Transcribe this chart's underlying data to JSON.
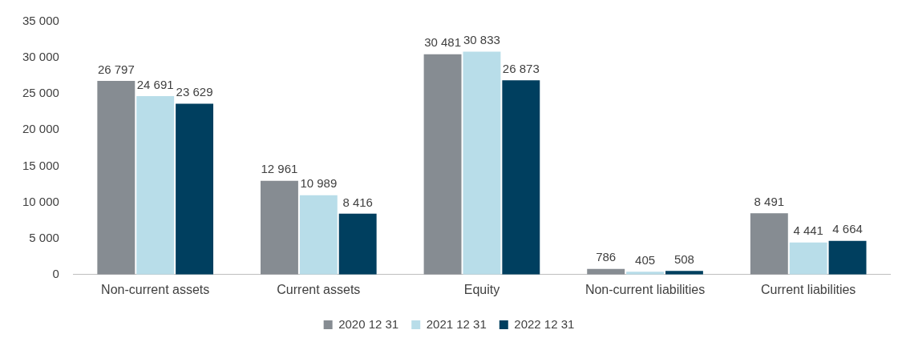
{
  "chart_data": {
    "type": "bar",
    "categories": [
      "Non-current assets",
      "Current assets",
      "Equity",
      "Non-current liabilities",
      "Current liabilities"
    ],
    "series": [
      {
        "name": "2020 12 31",
        "color": "#868c92",
        "values": [
          26797,
          12961,
          30481,
          786,
          8491
        ],
        "value_labels": [
          "26 797",
          "12 961",
          "30 481",
          "786",
          "8 491"
        ]
      },
      {
        "name": "2021 12 31",
        "color": "#b8dde9",
        "values": [
          24691,
          10989,
          30833,
          405,
          4441
        ],
        "value_labels": [
          "24 691",
          "10 989",
          "30 833",
          "405",
          "4 441"
        ]
      },
      {
        "name": "2022 12 31",
        "color": "#003f5f",
        "values": [
          23629,
          8416,
          26873,
          508,
          4664
        ],
        "value_labels": [
          "23 629",
          "8 416",
          "26 873",
          "508",
          "4 664"
        ]
      }
    ],
    "ylim": [
      0,
      35000
    ],
    "yticks": [
      0,
      {
        "value": 5000,
        "label": "5 000"
      },
      {
        "value": 10000,
        "label": "10 000"
      },
      {
        "value": 15000,
        "label": "15 000"
      },
      {
        "value": 20000,
        "label": "20 000"
      },
      {
        "value": 25000,
        "label": "25 000"
      },
      {
        "value": 30000,
        "label": "30 000"
      },
      {
        "value": 35000,
        "label": "35 000"
      }
    ],
    "grid": false,
    "legend": "bottom"
  }
}
